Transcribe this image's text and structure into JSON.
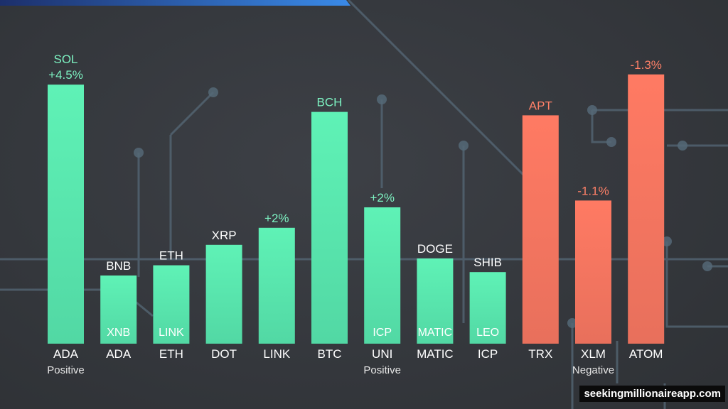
{
  "chart_data": {
    "type": "bar",
    "title": "",
    "xlabel": "",
    "ylabel": "",
    "categories": [
      "ADA",
      "ADA",
      "ETH",
      "DOT",
      "LINK",
      "BTC",
      "UNI",
      "MATIC",
      "ICP",
      "TRX",
      "XLM",
      "ATOM"
    ],
    "values": [
      7.6,
      2.0,
      2.3,
      2.9,
      3.4,
      6.8,
      4.0,
      2.5,
      2.1,
      6.7,
      4.2,
      7.9
    ],
    "ylim": [
      0,
      10
    ],
    "grid": false,
    "legend": "none",
    "bar_top_labels": [
      "SOL\n+4.5%",
      "BNB",
      "ETH",
      "XRP",
      "+2%",
      "BCH",
      "+2%",
      "DOGE",
      "SHIB",
      "APT",
      "-1.1%",
      "-1.3%"
    ],
    "bar_inner_labels": [
      "",
      "XNB",
      "LINK",
      "",
      "",
      "",
      "ICP",
      "MATIC",
      "LEO",
      "",
      "",
      ""
    ],
    "bar_groups": [
      "positive",
      "positive",
      "positive",
      "positive",
      "positive",
      "positive",
      "positive",
      "positive",
      "positive",
      "negative",
      "negative",
      "negative"
    ],
    "group_labels": [
      {
        "text": "Positive",
        "index": 0
      },
      {
        "text": "Positive",
        "index": 6
      },
      {
        "text": "Negative",
        "index": 10
      }
    ],
    "colors": {
      "positive_top": "#5ff2b6",
      "positive_bottom": "#52d8a4",
      "negative_top": "#ff7a63",
      "negative_bottom": "#e8705c",
      "positive_label": "#7df3c2",
      "negative_label": "#ff8068",
      "neutral_label": "#ffffff",
      "background": "#36393e",
      "accent_bar": "#2b74d4"
    }
  },
  "watermark": "seekingmillionaireapp.com"
}
